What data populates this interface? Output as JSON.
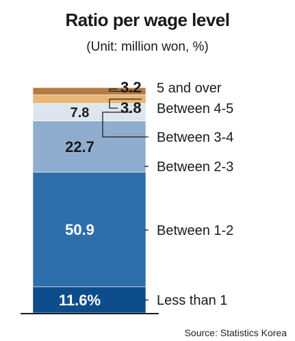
{
  "title": "Ratio per wage level",
  "subtitle": "(Unit: million won, %)",
  "source": "Source: Statistics Korea",
  "chart_data": {
    "type": "bar",
    "stacked": true,
    "title": "Ratio per wage level",
    "subtitle": "(Unit: million won, %)",
    "unit": "%",
    "segments": [
      {
        "category": "Less than 1",
        "value": 11.6,
        "label": "11.6%",
        "color": "#0e4d8c",
        "text_color": "#ffffff"
      },
      {
        "category": "Between 1-2",
        "value": 50.9,
        "label": "50.9",
        "color": "#2e6fab",
        "text_color": "#ffffff"
      },
      {
        "category": "Between 2-3",
        "value": 22.7,
        "label": "22.7",
        "color": "#8faecf",
        "text_color": "#1a1a1a"
      },
      {
        "category": "Between 3-4",
        "value": 7.8,
        "label": "7.8",
        "color": "#dde6ef",
        "text_color": "#1a1a1a"
      },
      {
        "category": "Between 4-5",
        "value": 3.8,
        "label": "3.8",
        "color": "#e7b777",
        "text_color": "#1a1a1a"
      },
      {
        "category": "5 and over",
        "value": 3.2,
        "label": "3.2",
        "color": "#b77a42",
        "text_color": "#1a1a1a"
      }
    ]
  }
}
